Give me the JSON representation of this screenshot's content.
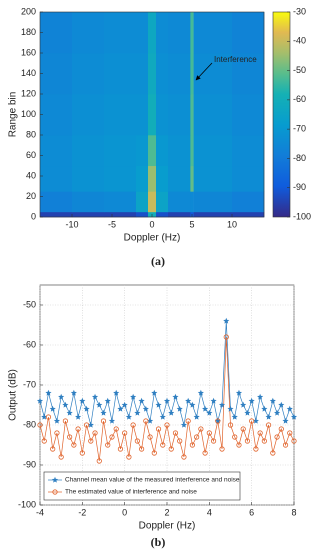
{
  "chart_data": [
    {
      "type": "heatmap",
      "caption": "(a)",
      "xlabel": "Doppler (Hz)",
      "ylabel": "Range bin",
      "annotation": "Interference",
      "colormap": "parula",
      "xlim": [
        -14,
        14
      ],
      "ylim": [
        0,
        200
      ],
      "xticks": [
        -10,
        -5,
        0,
        5,
        10
      ],
      "yticks": [
        0,
        20,
        40,
        60,
        80,
        100,
        120,
        140,
        160,
        180,
        200
      ],
      "xbins": [
        -14,
        -10,
        -6,
        -2,
        -0.5,
        0.5,
        2,
        4.8,
        5.2,
        10,
        14
      ],
      "ybins": [
        0,
        5,
        25,
        50,
        80,
        120,
        160,
        200
      ],
      "values": [
        [
          -95,
          -95,
          -95,
          -92,
          -60,
          -92,
          -95,
          -90,
          -95,
          -95
        ],
        [
          -78,
          -76,
          -75,
          -65,
          -40,
          -65,
          -75,
          -75,
          -76,
          -78
        ],
        [
          -74,
          -72,
          -71,
          -68,
          -45,
          -68,
          -72,
          -50,
          -72,
          -74
        ],
        [
          -74,
          -72,
          -71,
          -70,
          -52,
          -70,
          -72,
          -52,
          -72,
          -74
        ],
        [
          -75,
          -73,
          -72,
          -72,
          -60,
          -72,
          -73,
          -52,
          -73,
          -75
        ],
        [
          -76,
          -74,
          -73,
          -73,
          -62,
          -73,
          -74,
          -53,
          -74,
          -76
        ],
        [
          -77,
          -75,
          -74,
          -74,
          -63,
          -74,
          -75,
          -53,
          -75,
          -77
        ]
      ],
      "clim": [
        -100,
        -30
      ],
      "cticks": [
        -100,
        -90,
        -80,
        -70,
        -60,
        -50,
        -40,
        -30
      ]
    },
    {
      "type": "line",
      "caption": "(b)",
      "xlabel": "Doppler (Hz)",
      "ylabel": "Output (dB)",
      "xlim": [
        -4,
        8
      ],
      "ylim": [
        -100,
        -45
      ],
      "xticks": [
        -4,
        -2,
        0,
        2,
        4,
        6,
        8
      ],
      "yticks": [
        -100,
        -90,
        -80,
        -70,
        -60,
        -50
      ],
      "grid": true,
      "legend": "lower left",
      "x": [
        -4,
        -3.8,
        -3.6,
        -3.4,
        -3.2,
        -3,
        -2.8,
        -2.6,
        -2.4,
        -2.2,
        -2,
        -1.8,
        -1.6,
        -1.4,
        -1.2,
        -1,
        -0.8,
        -0.6,
        -0.4,
        -0.2,
        0,
        0.2,
        0.4,
        0.6,
        0.8,
        1,
        1.2,
        1.4,
        1.6,
        1.8,
        2,
        2.2,
        2.4,
        2.6,
        2.8,
        3,
        3.2,
        3.4,
        3.6,
        3.8,
        4,
        4.2,
        4.4,
        4.6,
        4.8,
        5,
        5.2,
        5.4,
        5.6,
        5.8,
        6,
        6.2,
        6.4,
        6.6,
        6.8,
        7,
        7.2,
        7.4,
        7.6,
        7.8,
        8
      ],
      "series": [
        {
          "name": "Channel mean value of the measured interference and noise",
          "color": "#2f7fc1",
          "marker": "star",
          "values": [
            -74,
            -78,
            -72,
            -76,
            -79,
            -73,
            -75,
            -77,
            -72,
            -78,
            -74,
            -76,
            -80,
            -73,
            -75,
            -77,
            -74,
            -79,
            -72,
            -76,
            -75,
            -78,
            -73,
            -77,
            -74,
            -76,
            -79,
            -72,
            -75,
            -78,
            -74,
            -77,
            -73,
            -76,
            -80,
            -74,
            -75,
            -78,
            -72,
            -76,
            -77,
            -74,
            -79,
            -75,
            -54,
            -76,
            -78,
            -72,
            -75,
            -77,
            -74,
            -79,
            -73,
            -76,
            -78,
            -74,
            -77,
            -75,
            -79,
            -76,
            -78
          ]
        },
        {
          "name": "The estimated value of interference and noise",
          "color": "#e0622a",
          "marker": "circle",
          "values": [
            -80,
            -84,
            -78,
            -86,
            -82,
            -88,
            -79,
            -83,
            -85,
            -81,
            -87,
            -80,
            -84,
            -82,
            -89,
            -79,
            -85,
            -83,
            -81,
            -86,
            -82,
            -88,
            -80,
            -84,
            -86,
            -79,
            -83,
            -87,
            -81,
            -85,
            -80,
            -86,
            -82,
            -84,
            -88,
            -79,
            -85,
            -83,
            -81,
            -87,
            -82,
            -84,
            -79,
            -86,
            -58,
            -80,
            -83,
            -85,
            -81,
            -84,
            -79,
            -86,
            -82,
            -84,
            -80,
            -87,
            -83,
            -81,
            -85,
            -82,
            -84
          ]
        }
      ]
    }
  ]
}
